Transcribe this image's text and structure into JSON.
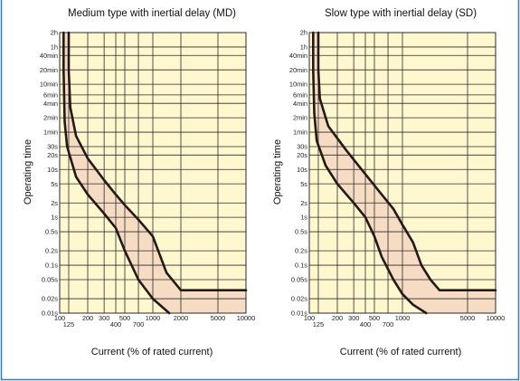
{
  "colors": {
    "plot_background": "#fff8cf",
    "grid": "#2a2a2a",
    "band_fill": "#f5dcc3",
    "curve": "#231915",
    "frame_border": "#2f7fc0"
  },
  "chart_data": [
    {
      "type": "line",
      "title": "Medium type with inertial delay (MD)",
      "xlabel": "Current (% of rated current)",
      "ylabel": "Operating time",
      "x_scale": "log",
      "y_scale": "log",
      "xlim": [
        100,
        10000
      ],
      "ylim": [
        "0.01s",
        "2h"
      ],
      "grid": true,
      "x_ticks": [
        {
          "label": "100",
          "value": 100
        },
        {
          "label": "125",
          "value": 125
        },
        {
          "label": "200",
          "value": 200
        },
        {
          "label": "300",
          "value": 300
        },
        {
          "label": "400",
          "value": 400
        },
        {
          "label": "500",
          "value": 500
        },
        {
          "label": "700",
          "value": 700
        },
        {
          "label": "1000",
          "value": 1000
        },
        {
          "label": "2000",
          "value": 2000
        },
        {
          "label": "5000",
          "value": 5000
        },
        {
          "label": "10000",
          "value": 10000
        }
      ],
      "y_ticks": [
        {
          "label": "0.01s",
          "value": 0.01
        },
        {
          "label": "0.02s",
          "value": 0.02
        },
        {
          "label": "0.05s",
          "value": 0.05
        },
        {
          "label": "0.1s",
          "value": 0.1
        },
        {
          "label": "0.2s",
          "value": 0.2
        },
        {
          "label": "0.5s",
          "value": 0.5
        },
        {
          "label": "1s",
          "value": 1
        },
        {
          "label": "2s",
          "value": 2
        },
        {
          "label": "5s",
          "value": 5
        },
        {
          "label": "10s",
          "value": 10
        },
        {
          "label": "20s",
          "value": 20
        },
        {
          "label": "30s",
          "value": 30
        },
        {
          "label": "1min",
          "value": 60
        },
        {
          "label": "2min",
          "value": 120
        },
        {
          "label": "4min",
          "value": 240
        },
        {
          "label": "6min",
          "value": 360
        },
        {
          "label": "10min",
          "value": 600
        },
        {
          "label": "20min",
          "value": 1200
        },
        {
          "label": "40min",
          "value": 2400
        },
        {
          "label": "1h",
          "value": 3600
        },
        {
          "label": "2h",
          "value": 7200
        }
      ],
      "series": [
        {
          "x": [
            125,
            125,
            130,
            150,
            200,
            300,
            400,
            500,
            700,
            1000,
            1400,
            2000,
            5000,
            10000
          ],
          "y": [
            7200,
            1200,
            200,
            50,
            17,
            6,
            3,
            1.8,
            0.9,
            0.4,
            0.07,
            0.03,
            0.03,
            0.03
          ]
        },
        {
          "x": [
            110,
            110,
            113,
            120,
            150,
            200,
            300,
            400,
            500,
            700,
            1000,
            1500
          ],
          "y": [
            7200,
            1200,
            100,
            30,
            7,
            3,
            1.2,
            0.6,
            0.2,
            0.05,
            0.02,
            0.01
          ]
        }
      ]
    },
    {
      "type": "line",
      "title": "Slow type with inertial delay (SD)",
      "xlabel": "Current (% of rated current)",
      "ylabel": "Operating time",
      "x_scale": "log",
      "y_scale": "log",
      "xlim": [
        100,
        10000
      ],
      "ylim": [
        "0.01s",
        "2h"
      ],
      "grid": true,
      "x_ticks": [
        {
          "label": "100",
          "value": 100
        },
        {
          "label": "125",
          "value": 125
        },
        {
          "label": "200",
          "value": 200
        },
        {
          "label": "300",
          "value": 300
        },
        {
          "label": "400",
          "value": 400
        },
        {
          "label": "500",
          "value": 500
        },
        {
          "label": "700",
          "value": 700
        },
        {
          "label": "1000",
          "value": 1000
        },
        {
          "label": "5000",
          "value": 5000
        },
        {
          "label": "10000",
          "value": 10000
        }
      ],
      "y_ticks": [
        {
          "label": "0.01s",
          "value": 0.01
        },
        {
          "label": "0.02s",
          "value": 0.02
        },
        {
          "label": "0.05s",
          "value": 0.05
        },
        {
          "label": "0.1s",
          "value": 0.1
        },
        {
          "label": "0.2s",
          "value": 0.2
        },
        {
          "label": "0.5s",
          "value": 0.5
        },
        {
          "label": "1s",
          "value": 1
        },
        {
          "label": "2s",
          "value": 2
        },
        {
          "label": "5s",
          "value": 5
        },
        {
          "label": "10s",
          "value": 10
        },
        {
          "label": "20s",
          "value": 20
        },
        {
          "label": "30s",
          "value": 30
        },
        {
          "label": "1min",
          "value": 60
        },
        {
          "label": "2min",
          "value": 120
        },
        {
          "label": "4min",
          "value": 240
        },
        {
          "label": "6min",
          "value": 360
        },
        {
          "label": "10min",
          "value": 600
        },
        {
          "label": "20min",
          "value": 1200
        },
        {
          "label": "40min",
          "value": 2400
        },
        {
          "label": "1h",
          "value": 3600
        },
        {
          "label": "2h",
          "value": 7200
        }
      ],
      "series": [
        {
          "x": [
            125,
            125,
            130,
            160,
            250,
            400,
            600,
            800,
            1000,
            1300,
            1600,
            2000,
            2500,
            10000
          ],
          "y": [
            7200,
            1200,
            300,
            80,
            25,
            8,
            3,
            1.5,
            0.7,
            0.3,
            0.1,
            0.05,
            0.03,
            0.03
          ]
        },
        {
          "x": [
            110,
            110,
            113,
            120,
            150,
            200,
            300,
            400,
            500,
            600,
            800,
            1000,
            1300,
            1800
          ],
          "y": [
            7200,
            1200,
            150,
            40,
            12,
            5,
            2,
            1,
            0.4,
            0.15,
            0.05,
            0.025,
            0.015,
            0.01
          ]
        }
      ]
    }
  ]
}
